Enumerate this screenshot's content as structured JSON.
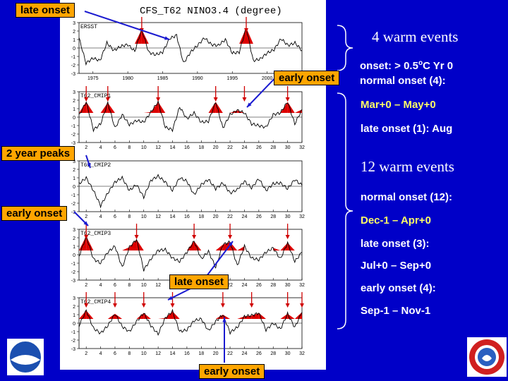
{
  "figure_title": "CFS_T62  NINO3.4  (degree)",
  "callouts": {
    "late_onset_top": "late onset",
    "early_onset_mid": "early onset",
    "two_year_peaks": "2 year peaks",
    "early_onset_left": "early onset",
    "late_onset_lower": "late onset",
    "early_onset_bottom": "early onset"
  },
  "side_text": {
    "obs_events": "4 warm events",
    "onset_def": "onset: > 0.5",
    "onset_def_sup": "o",
    "onset_def_tail": "C Yr 0",
    "obs_normal": "normal onset (4):",
    "obs_normal_range": "Mar+0 – May+0",
    "obs_late": "late onset (1): Aug",
    "model_events": "12 warm events",
    "model_normal": "normal onset (12):",
    "model_normal_range": "Dec-1 – Apr+0",
    "model_late": "late onset (3):",
    "model_late_range": "Jul+0 – Sep+0",
    "model_early": "early onset (4):",
    "model_early_range": "Sep-1 – Nov-1"
  },
  "colors": {
    "background": "#0000c8",
    "callout": "#ffa500",
    "highlight": "#ffff66",
    "warm_fill": "#dd0000",
    "arrow": "#1a1ad0"
  },
  "logos": [
    "noaa-logo",
    "weather-service-logo"
  ],
  "chart_data": [
    {
      "type": "line",
      "name": "ERSST",
      "x_ticks": [
        "1975",
        "1980",
        "1985",
        "1990",
        "1995",
        "2000"
      ],
      "ylim": [
        -3,
        3
      ],
      "y_ticks": [
        -3,
        -2,
        -1,
        0,
        1,
        2,
        3
      ],
      "x": [
        1973,
        1974,
        1975,
        1976,
        1977,
        1978,
        1979,
        1980,
        1981,
        1982,
        1983,
        1984,
        1985,
        1986,
        1987,
        1988,
        1989,
        1990,
        1991,
        1992,
        1993,
        1994,
        1995,
        1996,
        1997,
        1998,
        1999,
        2000,
        2001,
        2002,
        2003,
        2004,
        2005
      ],
      "values": [
        1.2,
        -1.8,
        -1.2,
        -1.5,
        0.6,
        -0.3,
        0.2,
        0.4,
        -0.4,
        2.2,
        -0.5,
        -0.8,
        -0.5,
        1.1,
        1.5,
        -1.8,
        -0.5,
        0.3,
        1.2,
        0.4,
        0.3,
        1.0,
        -0.6,
        -0.5,
        2.4,
        -1.5,
        -1.3,
        -0.6,
        -0.2,
        1.1,
        0.3,
        0.6,
        -0.3
      ],
      "warm_events": [
        1982,
        1997
      ]
    },
    {
      "type": "line",
      "name": "T62_CMIP1",
      "x_ticks": [
        "2",
        "4",
        "6",
        "8",
        "10",
        "12",
        "14",
        "16",
        "18",
        "20",
        "22",
        "24",
        "26",
        "28",
        "30",
        "32"
      ],
      "ylim": [
        -3,
        3
      ],
      "y_ticks": [
        -3,
        -2,
        -1,
        0,
        1,
        2,
        3
      ],
      "x": [
        1,
        2,
        3,
        4,
        5,
        6,
        7,
        8,
        9,
        10,
        11,
        12,
        13,
        14,
        15,
        16,
        17,
        18,
        19,
        20,
        21,
        22,
        23,
        24,
        25,
        26,
        27,
        28,
        29,
        30,
        31,
        32
      ],
      "values": [
        0.2,
        1.8,
        -1.5,
        -0.8,
        1.7,
        -1.3,
        0.3,
        -0.9,
        -0.4,
        -0.6,
        0.6,
        1.8,
        -1.2,
        -1.5,
        1.2,
        -0.2,
        0.5,
        -0.6,
        -0.5,
        1.8,
        -1.3,
        0.3,
        0.8,
        0.5,
        -0.8,
        -1.0,
        -1.2,
        0.3,
        0.5,
        1.8,
        -0.8,
        0.9
      ],
      "warm_events": [
        2,
        5,
        12,
        20,
        24,
        30
      ]
    },
    {
      "type": "line",
      "name": "T62_CMIP2",
      "x_ticks": [
        "2",
        "4",
        "6",
        "8",
        "10",
        "12",
        "14",
        "16",
        "18",
        "20",
        "22",
        "24",
        "26",
        "28",
        "30",
        "32"
      ],
      "ylim": [
        -3,
        3
      ],
      "y_ticks": [
        -3,
        -2,
        -1,
        0,
        1,
        2,
        3
      ],
      "x": [
        1,
        2,
        3,
        4,
        5,
        6,
        7,
        8,
        9,
        10,
        11,
        12,
        13,
        14,
        15,
        16,
        17,
        18,
        19,
        20,
        21,
        22,
        23,
        24,
        25,
        26,
        27,
        28,
        29,
        30,
        31,
        32
      ],
      "values": [
        0.3,
        1.0,
        -0.5,
        -2.3,
        -0.8,
        0.5,
        1.0,
        -0.5,
        0.2,
        -1.3,
        0.7,
        1.2,
        0.5,
        -0.5,
        1.0,
        0.6,
        -1.0,
        0.2,
        0.8,
        -0.3,
        0.4,
        -0.8,
        -0.4,
        0.6,
        -0.2,
        0.9,
        -0.5,
        0.3,
        0.4,
        -0.3,
        0.8,
        0.1
      ],
      "warm_events": []
    },
    {
      "type": "line",
      "name": "T62_CMIP3",
      "x_ticks": [
        "2",
        "4",
        "6",
        "8",
        "10",
        "12",
        "14",
        "16",
        "18",
        "20",
        "22",
        "24",
        "26",
        "28",
        "30",
        "32"
      ],
      "ylim": [
        -3,
        3
      ],
      "y_ticks": [
        -3,
        -2,
        -1,
        0,
        1,
        2,
        3
      ],
      "x": [
        1,
        2,
        3,
        4,
        5,
        6,
        7,
        8,
        9,
        10,
        11,
        12,
        13,
        14,
        15,
        16,
        17,
        18,
        19,
        20,
        21,
        22,
        23,
        24,
        25,
        26,
        27,
        28,
        29,
        30,
        31,
        32
      ],
      "values": [
        -0.2,
        2.2,
        -0.5,
        -1.0,
        0.3,
        1.0,
        -1.5,
        0.9,
        1.8,
        -1.8,
        -0.5,
        0.5,
        0.6,
        -0.4,
        -0.8,
        0.3,
        1.6,
        -0.5,
        0.4,
        -1.5,
        1.2,
        1.5,
        -1.3,
        1.0,
        -0.4,
        -0.6,
        0.3,
        0.8,
        -0.5,
        1.4,
        -0.8,
        0.3
      ],
      "warm_events": [
        2,
        9,
        17,
        22,
        30
      ]
    },
    {
      "type": "line",
      "name": "T62_CMIP4",
      "x_ticks": [
        "2",
        "4",
        "6",
        "8",
        "10",
        "12",
        "14",
        "16",
        "18",
        "20",
        "22",
        "24",
        "26",
        "28",
        "30",
        "32"
      ],
      "ylim": [
        -3,
        3
      ],
      "y_ticks": [
        -3,
        -2,
        -1,
        0,
        1,
        2,
        3
      ],
      "x": [
        1,
        2,
        3,
        4,
        5,
        6,
        7,
        8,
        9,
        10,
        11,
        12,
        13,
        14,
        15,
        16,
        17,
        18,
        19,
        20,
        21,
        22,
        23,
        24,
        25,
        26,
        27,
        28,
        29,
        30,
        31,
        32
      ],
      "values": [
        -0.3,
        1.5,
        -0.6,
        -1.2,
        -0.3,
        1.1,
        -0.4,
        -1.0,
        0.2,
        1.2,
        -0.3,
        -1.3,
        0.6,
        1.4,
        -1.0,
        -0.8,
        0.3,
        0.5,
        -0.9,
        0.2,
        1.0,
        -1.1,
        -0.5,
        0.8,
        0.9,
        1.2,
        -0.8,
        0.0,
        -0.7,
        1.1,
        -0.5,
        1.3
      ],
      "warm_events": [
        2,
        6,
        10,
        14,
        21,
        25,
        30,
        32
      ]
    }
  ]
}
